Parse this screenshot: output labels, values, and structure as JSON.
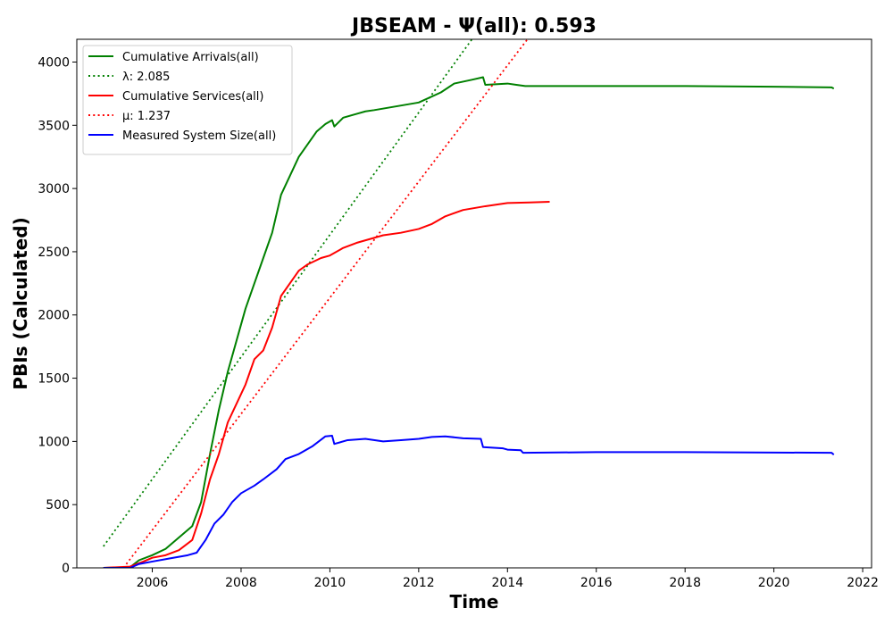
{
  "chart_data": {
    "type": "line",
    "title": "JBSEAM -  Ψ(all): 0.593",
    "xlabel": "Time",
    "ylabel": "PBIs (Calculated)",
    "xlim": [
      2004.3,
      2022.2
    ],
    "ylim": [
      0,
      4180
    ],
    "grid": false,
    "legend_position": "top-left",
    "x_ticks": [
      2006,
      2008,
      2010,
      2012,
      2014,
      2016,
      2018,
      2020,
      2022
    ],
    "y_ticks": [
      0,
      500,
      1000,
      1500,
      2000,
      2500,
      3000,
      3500,
      4000
    ],
    "series": [
      {
        "name": "Cumulative Arrivals(all)",
        "color": "#008000",
        "style": "solid",
        "points": [
          [
            2004.9,
            0
          ],
          [
            2005.5,
            5
          ],
          [
            2005.7,
            60
          ],
          [
            2006.0,
            100
          ],
          [
            2006.3,
            150
          ],
          [
            2006.6,
            240
          ],
          [
            2006.9,
            330
          ],
          [
            2007.1,
            520
          ],
          [
            2007.3,
            900
          ],
          [
            2007.5,
            1250
          ],
          [
            2007.7,
            1550
          ],
          [
            2007.9,
            1800
          ],
          [
            2008.1,
            2050
          ],
          [
            2008.3,
            2250
          ],
          [
            2008.5,
            2450
          ],
          [
            2008.7,
            2650
          ],
          [
            2008.9,
            2950
          ],
          [
            2009.1,
            3100
          ],
          [
            2009.3,
            3250
          ],
          [
            2009.5,
            3350
          ],
          [
            2009.7,
            3450
          ],
          [
            2009.9,
            3510
          ],
          [
            2010.05,
            3540
          ],
          [
            2010.1,
            3490
          ],
          [
            2010.3,
            3560
          ],
          [
            2010.6,
            3590
          ],
          [
            2010.8,
            3610
          ],
          [
            2011.0,
            3620
          ],
          [
            2011.5,
            3650
          ],
          [
            2012.0,
            3680
          ],
          [
            2012.5,
            3760
          ],
          [
            2012.8,
            3830
          ],
          [
            2013.2,
            3860
          ],
          [
            2013.45,
            3880
          ],
          [
            2013.5,
            3820
          ],
          [
            2014.0,
            3830
          ],
          [
            2014.2,
            3820
          ],
          [
            2014.4,
            3810
          ],
          [
            2016.0,
            3810
          ],
          [
            2018.0,
            3810
          ],
          [
            2020.0,
            3805
          ],
          [
            2021.3,
            3800
          ],
          [
            2021.35,
            3790
          ]
        ]
      },
      {
        "name": "λ: 2.085",
        "color": "#008000",
        "style": "dotted",
        "points": [
          [
            2004.9,
            170
          ],
          [
            2013.2,
            4180
          ]
        ]
      },
      {
        "name": "Cumulative Services(all)",
        "color": "#ff0000",
        "style": "solid",
        "points": [
          [
            2004.9,
            0
          ],
          [
            2005.5,
            10
          ],
          [
            2005.8,
            50
          ],
          [
            2006.0,
            80
          ],
          [
            2006.3,
            100
          ],
          [
            2006.6,
            140
          ],
          [
            2006.9,
            220
          ],
          [
            2007.1,
            430
          ],
          [
            2007.3,
            700
          ],
          [
            2007.5,
            900
          ],
          [
            2007.7,
            1150
          ],
          [
            2007.9,
            1300
          ],
          [
            2008.1,
            1450
          ],
          [
            2008.3,
            1650
          ],
          [
            2008.5,
            1720
          ],
          [
            2008.7,
            1900
          ],
          [
            2008.9,
            2150
          ],
          [
            2009.1,
            2250
          ],
          [
            2009.3,
            2350
          ],
          [
            2009.5,
            2400
          ],
          [
            2009.8,
            2450
          ],
          [
            2010.0,
            2470
          ],
          [
            2010.3,
            2530
          ],
          [
            2010.6,
            2570
          ],
          [
            2010.9,
            2600
          ],
          [
            2011.2,
            2630
          ],
          [
            2011.6,
            2650
          ],
          [
            2012.0,
            2680
          ],
          [
            2012.3,
            2720
          ],
          [
            2012.6,
            2780
          ],
          [
            2013.0,
            2830
          ],
          [
            2013.5,
            2860
          ],
          [
            2014.0,
            2885
          ],
          [
            2014.5,
            2890
          ],
          [
            2014.95,
            2895
          ]
        ]
      },
      {
        "name": "μ: 1.237",
        "color": "#ff0000",
        "style": "dotted",
        "points": [
          [
            2005.35,
            0
          ],
          [
            2014.45,
            4180
          ]
        ]
      },
      {
        "name": "Measured System Size(all)",
        "color": "#0000ff",
        "style": "solid",
        "points": [
          [
            2004.9,
            0
          ],
          [
            2005.5,
            0
          ],
          [
            2005.7,
            30
          ],
          [
            2006.0,
            50
          ],
          [
            2006.4,
            75
          ],
          [
            2006.8,
            100
          ],
          [
            2007.0,
            120
          ],
          [
            2007.2,
            220
          ],
          [
            2007.4,
            350
          ],
          [
            2007.6,
            420
          ],
          [
            2007.8,
            520
          ],
          [
            2008.0,
            590
          ],
          [
            2008.3,
            650
          ],
          [
            2008.5,
            700
          ],
          [
            2008.8,
            780
          ],
          [
            2009.0,
            860
          ],
          [
            2009.3,
            900
          ],
          [
            2009.6,
            960
          ],
          [
            2009.9,
            1040
          ],
          [
            2010.05,
            1045
          ],
          [
            2010.1,
            980
          ],
          [
            2010.4,
            1010
          ],
          [
            2010.8,
            1020
          ],
          [
            2011.2,
            1000
          ],
          [
            2011.6,
            1010
          ],
          [
            2012.0,
            1020
          ],
          [
            2012.3,
            1035
          ],
          [
            2012.6,
            1040
          ],
          [
            2013.0,
            1025
          ],
          [
            2013.4,
            1020
          ],
          [
            2013.45,
            955
          ],
          [
            2013.9,
            945
          ],
          [
            2014.0,
            935
          ],
          [
            2014.3,
            930
          ],
          [
            2014.35,
            910
          ],
          [
            2016.0,
            915
          ],
          [
            2018.0,
            915
          ],
          [
            2020.0,
            912
          ],
          [
            2021.3,
            910
          ],
          [
            2021.35,
            895
          ]
        ]
      }
    ]
  }
}
